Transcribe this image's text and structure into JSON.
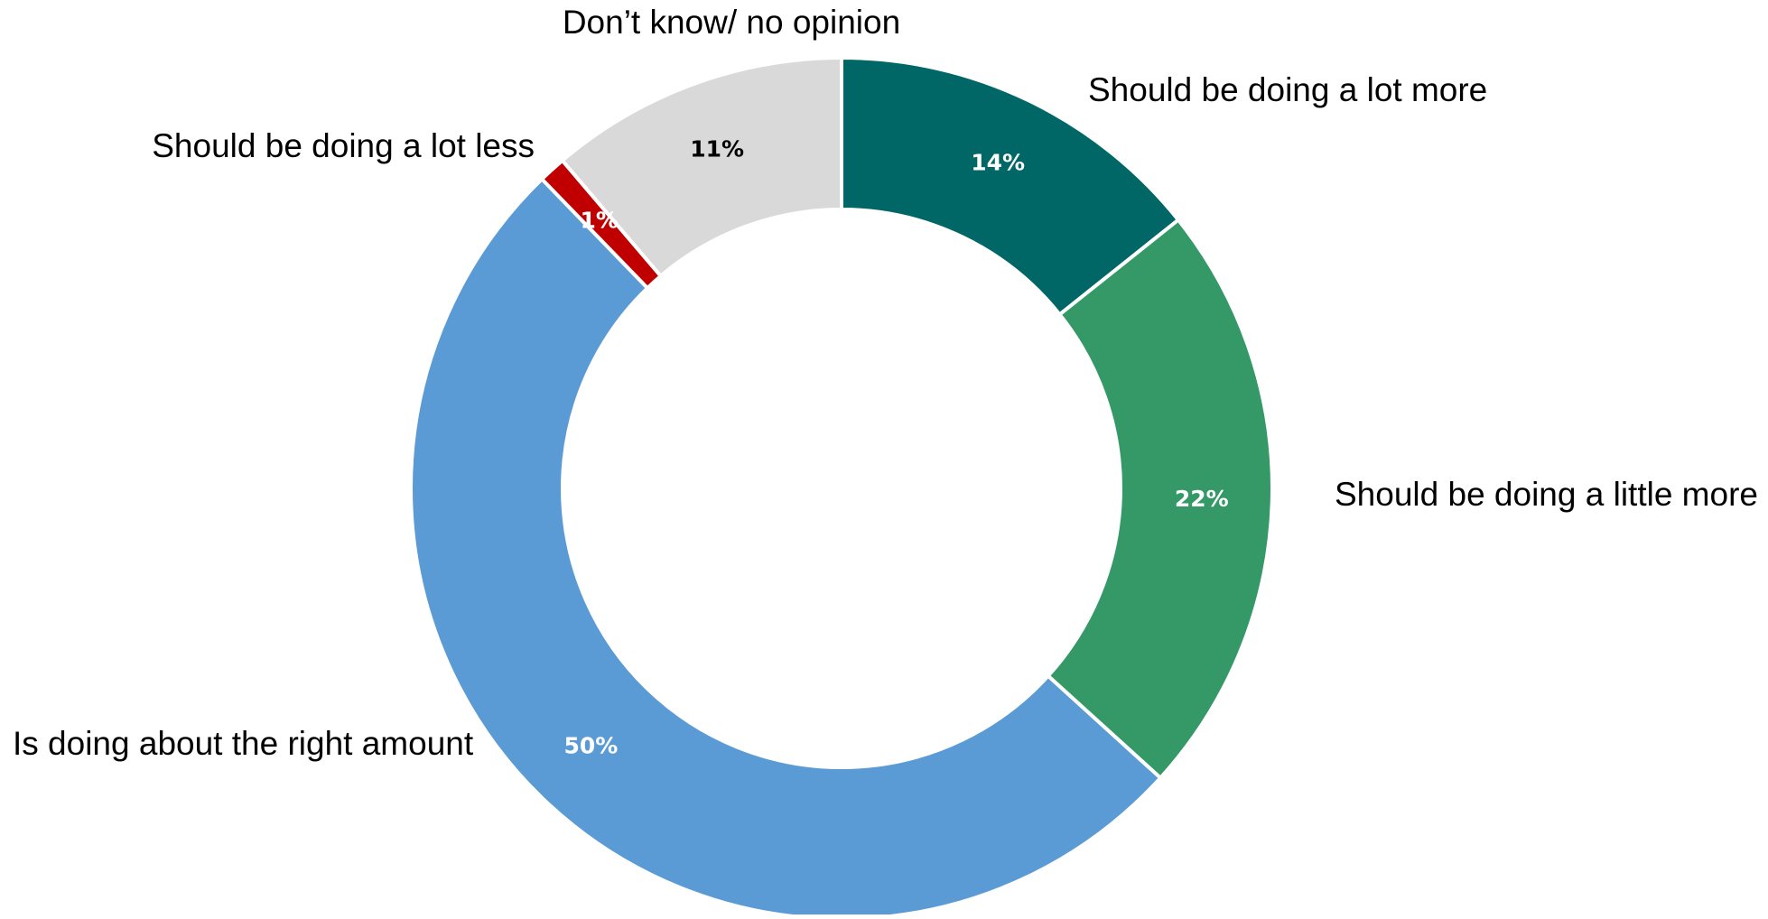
{
  "chart_data": {
    "type": "pie",
    "subtype": "donut",
    "title": "",
    "legend": "none",
    "slices": [
      {
        "label": "Should be doing a lot more",
        "value": 14,
        "value_label": "14%",
        "color": "#006766",
        "label_color": "#ffffff"
      },
      {
        "label": "Should be doing a little more",
        "value": 22,
        "value_label": "22%",
        "color": "#349967",
        "label_color": "#ffffff"
      },
      {
        "label": "Is doing about the right amount",
        "value": 50,
        "value_label": "50%",
        "color": "#5b9bd5",
        "label_color": "#ffffff"
      },
      {
        "label": "Should be doing a lot less",
        "value": 1,
        "value_label": "1%",
        "color": "#c00000",
        "label_color": "#ffffff"
      },
      {
        "label": "Don’t know/ no opinion",
        "value": 11,
        "value_label": "11%",
        "color": "#d9d9d9",
        "label_color": "#000000"
      }
    ]
  }
}
